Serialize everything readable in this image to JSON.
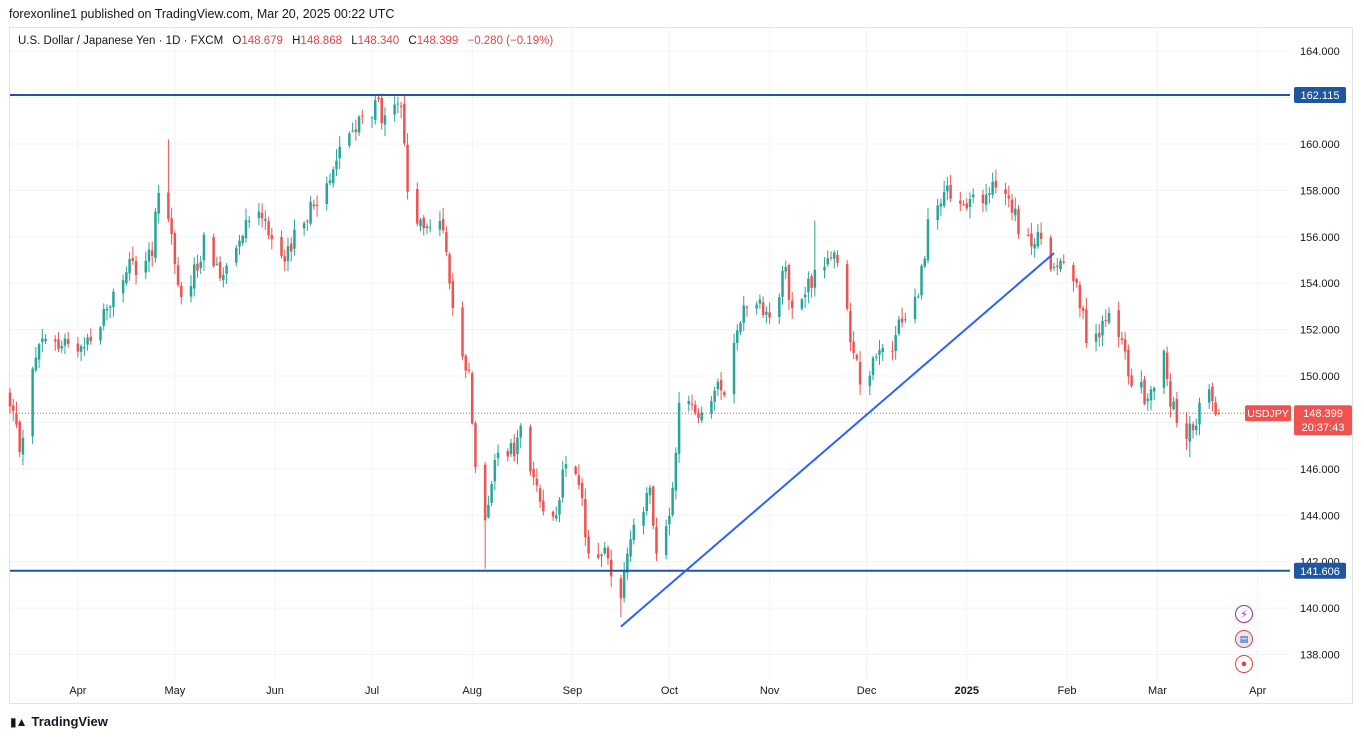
{
  "publisher_line": "forexonline1 published on TradingView.com, Mar 20, 2025 00:22 UTC",
  "legend": {
    "symbol": "U.S. Dollar / Japanese Yen · 1D · FXCM",
    "open_label": "O",
    "open": "148.679",
    "high_label": "H",
    "high": "148.868",
    "low_label": "L",
    "low": "148.340",
    "close_label": "C",
    "close": "148.399",
    "change": "−0.280 (−0.19%)"
  },
  "footer": {
    "brand": "TradingView"
  },
  "icons": [
    "flash-icon",
    "us-flag-icon",
    "record-icon"
  ],
  "chart_data": {
    "type": "candlestick",
    "ylim": [
      136.9,
      165.0
    ],
    "y_ticks": [
      "164.000",
      "162.000",
      "160.000",
      "158.000",
      "156.000",
      "154.000",
      "152.000",
      "150.000",
      "148.000",
      "146.000",
      "144.000",
      "142.000",
      "140.000",
      "138.000"
    ],
    "x_ticks": [
      "Apr",
      "May",
      "Jun",
      "Jul",
      "Aug",
      "Sep",
      "Oct",
      "Nov",
      "Dec",
      "2025",
      "Feb",
      "Mar",
      "Apr"
    ],
    "x_ticks_dates": [
      "2024-04-01",
      "2024-05-01",
      "2024-06-01",
      "2024-07-01",
      "2024-08-01",
      "2024-09-01",
      "2024-10-01",
      "2024-11-01",
      "2024-12-01",
      "2025-01-01",
      "2025-02-01",
      "2025-03-01",
      "2025-04-01"
    ],
    "x_range": [
      "2024-03-11",
      "2025-04-11"
    ],
    "colors": {
      "up": "#26a69a",
      "down": "#ef5350",
      "line": "#2962ff",
      "hline": "#1e56a0",
      "current": "#ef5350",
      "grid": "#f0f3fa"
    },
    "horizontal_lines": [
      {
        "value": 162.115,
        "label": "162.115"
      },
      {
        "value": 141.606,
        "label": "141.606"
      }
    ],
    "trendline": {
      "start": [
        "2024-09-16",
        139.2
      ],
      "end": [
        "2025-01-28",
        155.3
      ]
    },
    "current_price": {
      "symbol": "USDJPY",
      "price": "148.399",
      "countdown": "20:37:43",
      "value": 148.399
    },
    "close_anchors": [
      [
        "2024-03-11",
        148.6
      ],
      [
        "2024-03-14",
        147.0
      ],
      [
        "2024-03-19",
        150.8
      ],
      [
        "2024-03-21",
        151.4
      ],
      [
        "2024-03-29",
        151.3
      ],
      [
        "2024-04-05",
        151.6
      ],
      [
        "2024-04-10",
        152.9
      ],
      [
        "2024-04-16",
        154.6
      ],
      [
        "2024-04-19",
        154.6
      ],
      [
        "2024-04-24",
        155.2
      ],
      [
        "2024-04-26",
        158.3
      ],
      [
        "2024-04-29",
        157.0
      ],
      [
        "2024-05-03",
        153.1
      ],
      [
        "2024-05-06",
        153.9
      ],
      [
        "2024-05-10",
        155.8
      ],
      [
        "2024-05-15",
        154.3
      ],
      [
        "2024-05-21",
        156.2
      ],
      [
        "2024-05-24",
        157.0
      ],
      [
        "2024-05-28",
        157.1
      ],
      [
        "2024-06-04",
        154.8
      ],
      [
        "2024-06-10",
        157.0
      ],
      [
        "2024-06-14",
        157.4
      ],
      [
        "2024-06-21",
        159.8
      ],
      [
        "2024-06-26",
        160.8
      ],
      [
        "2024-07-02",
        161.5
      ],
      [
        "2024-07-03",
        161.7
      ],
      [
        "2024-07-05",
        160.8
      ],
      [
        "2024-07-10",
        161.6
      ],
      [
        "2024-07-12",
        157.8
      ],
      [
        "2024-07-17",
        156.2
      ],
      [
        "2024-07-22",
        157.0
      ],
      [
        "2024-07-25",
        153.9
      ],
      [
        "2024-07-31",
        149.9
      ],
      [
        "2024-08-02",
        146.5
      ],
      [
        "2024-08-05",
        144.2
      ],
      [
        "2024-08-09",
        146.6
      ],
      [
        "2024-08-14",
        146.7
      ],
      [
        "2024-08-16",
        147.7
      ],
      [
        "2024-08-20",
        145.4
      ],
      [
        "2024-08-23",
        144.3
      ],
      [
        "2024-08-27",
        144.4
      ],
      [
        "2024-08-30",
        146.1
      ],
      [
        "2024-09-03",
        145.4
      ],
      [
        "2024-09-06",
        142.3
      ],
      [
        "2024-09-11",
        142.4
      ],
      [
        "2024-09-16",
        140.6
      ],
      [
        "2024-09-18",
        142.3
      ],
      [
        "2024-09-20",
        143.9
      ],
      [
        "2024-09-25",
        144.8
      ],
      [
        "2024-09-27",
        142.2
      ],
      [
        "2024-10-01",
        143.6
      ],
      [
        "2024-10-04",
        148.7
      ],
      [
        "2024-10-10",
        148.6
      ],
      [
        "2024-10-15",
        149.2
      ],
      [
        "2024-10-18",
        149.6
      ],
      [
        "2024-10-23",
        152.7
      ],
      [
        "2024-10-29",
        153.4
      ],
      [
        "2024-11-01",
        152.4
      ],
      [
        "2024-11-06",
        154.6
      ],
      [
        "2024-11-08",
        152.6
      ],
      [
        "2024-11-15",
        154.3
      ],
      [
        "2024-11-20",
        155.4
      ],
      [
        "2024-11-22",
        154.7
      ],
      [
        "2024-11-27",
        151.1
      ],
      [
        "2024-11-29",
        149.8
      ],
      [
        "2024-12-04",
        150.6
      ],
      [
        "2024-12-09",
        151.2
      ],
      [
        "2024-12-12",
        152.6
      ],
      [
        "2024-12-17",
        153.5
      ],
      [
        "2024-12-20",
        156.5
      ],
      [
        "2024-12-26",
        157.8
      ],
      [
        "2024-12-31",
        157.2
      ],
      [
        "2025-01-06",
        157.7
      ],
      [
        "2025-01-10",
        158.0
      ],
      [
        "2025-01-14",
        157.9
      ],
      [
        "2025-01-17",
        156.2
      ],
      [
        "2025-01-21",
        155.6
      ],
      [
        "2025-01-24",
        156.0
      ],
      [
        "2025-01-27",
        154.5
      ],
      [
        "2025-01-31",
        155.2
      ],
      [
        "2025-02-04",
        154.3
      ],
      [
        "2025-02-07",
        151.4
      ],
      [
        "2025-02-11",
        152.0
      ],
      [
        "2025-02-14",
        152.4
      ],
      [
        "2025-02-18",
        151.4
      ],
      [
        "2025-02-21",
        149.6
      ],
      [
        "2025-02-26",
        149.1
      ],
      [
        "2025-03-03",
        150.7
      ],
      [
        "2025-03-05",
        149.0
      ],
      [
        "2025-03-07",
        148.0
      ],
      [
        "2025-03-11",
        147.6
      ],
      [
        "2025-03-14",
        148.6
      ],
      [
        "2025-03-17",
        149.2
      ],
      [
        "2025-03-18",
        149.2
      ],
      [
        "2025-03-19",
        148.7
      ],
      [
        "2025-03-20",
        148.4
      ]
    ],
    "spikes": [
      [
        "2024-04-29",
        160.2
      ],
      [
        "2024-07-03",
        161.9
      ],
      [
        "2024-08-05",
        141.7
      ],
      [
        "2024-09-16",
        139.6
      ],
      [
        "2024-11-15",
        156.7
      ],
      [
        "2025-01-10",
        158.9
      ],
      [
        "2025-03-11",
        146.5
      ]
    ]
  }
}
